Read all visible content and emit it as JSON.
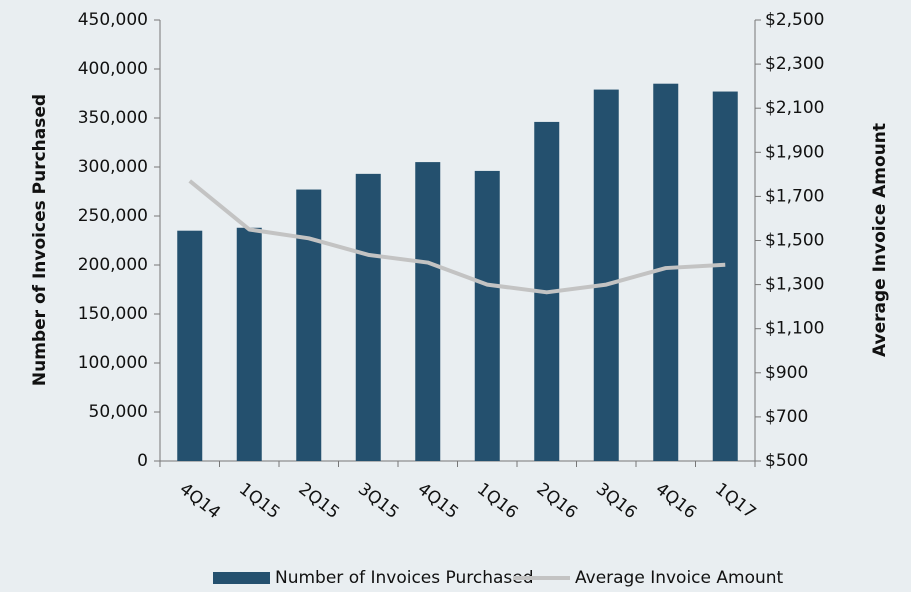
{
  "chart_data": {
    "type": "bar_line",
    "categories": [
      "4Q14",
      "1Q15",
      "2Q15",
      "3Q15",
      "4Q15",
      "1Q16",
      "2Q16",
      "3Q16",
      "4Q16",
      "1Q17"
    ],
    "series": [
      {
        "name": "Number of Invoices Purchased",
        "type": "bar",
        "color": "#24506e",
        "axis": "y",
        "values": [
          235000,
          238000,
          277000,
          293000,
          305000,
          296000,
          346000,
          379000,
          385000,
          377000
        ]
      },
      {
        "name": "Average Invoice Amount",
        "type": "line",
        "color": "#c3c3c3",
        "axis": "y2",
        "values": [
          1770,
          1550,
          1510,
          1435,
          1400,
          1300,
          1265,
          1300,
          1375,
          1390
        ]
      }
    ],
    "ylabel": "Number of Invoices Purchased",
    "y2label": "Average Invoice Amount",
    "ylim": [
      0,
      450000
    ],
    "yticks": [
      0,
      {
        "value": 50000,
        "label": "50,000"
      },
      {
        "value": 100000,
        "label": "100,000"
      },
      {
        "value": 150000,
        "label": "150,000"
      },
      {
        "value": 200000,
        "label": "200,000"
      },
      {
        "value": 250000,
        "label": "250,000"
      },
      {
        "value": 300000,
        "label": "300,000"
      },
      {
        "value": 350000,
        "label": "350,000"
      },
      {
        "value": 400000,
        "label": "400,000"
      },
      {
        "value": 450000,
        "label": "450,000"
      }
    ],
    "y2lim": [
      500,
      2500
    ],
    "y2ticks": [
      {
        "value": 500,
        "label": "$500"
      },
      {
        "value": 700,
        "label": "$700"
      },
      {
        "value": 900,
        "label": "$900"
      },
      {
        "value": 1100,
        "label": "$1,100"
      },
      {
        "value": 1300,
        "label": "$1,300"
      },
      {
        "value": 1500,
        "label": "$1,500"
      },
      {
        "value": 1700,
        "label": "$1,700"
      },
      {
        "value": 1900,
        "label": "$1,900"
      },
      {
        "value": 2100,
        "label": "$2,100"
      },
      {
        "value": 2300,
        "label": "$2,300"
      },
      {
        "value": 2500,
        "label": "$2,500"
      }
    ],
    "grid": false,
    "legend": "bottom"
  }
}
